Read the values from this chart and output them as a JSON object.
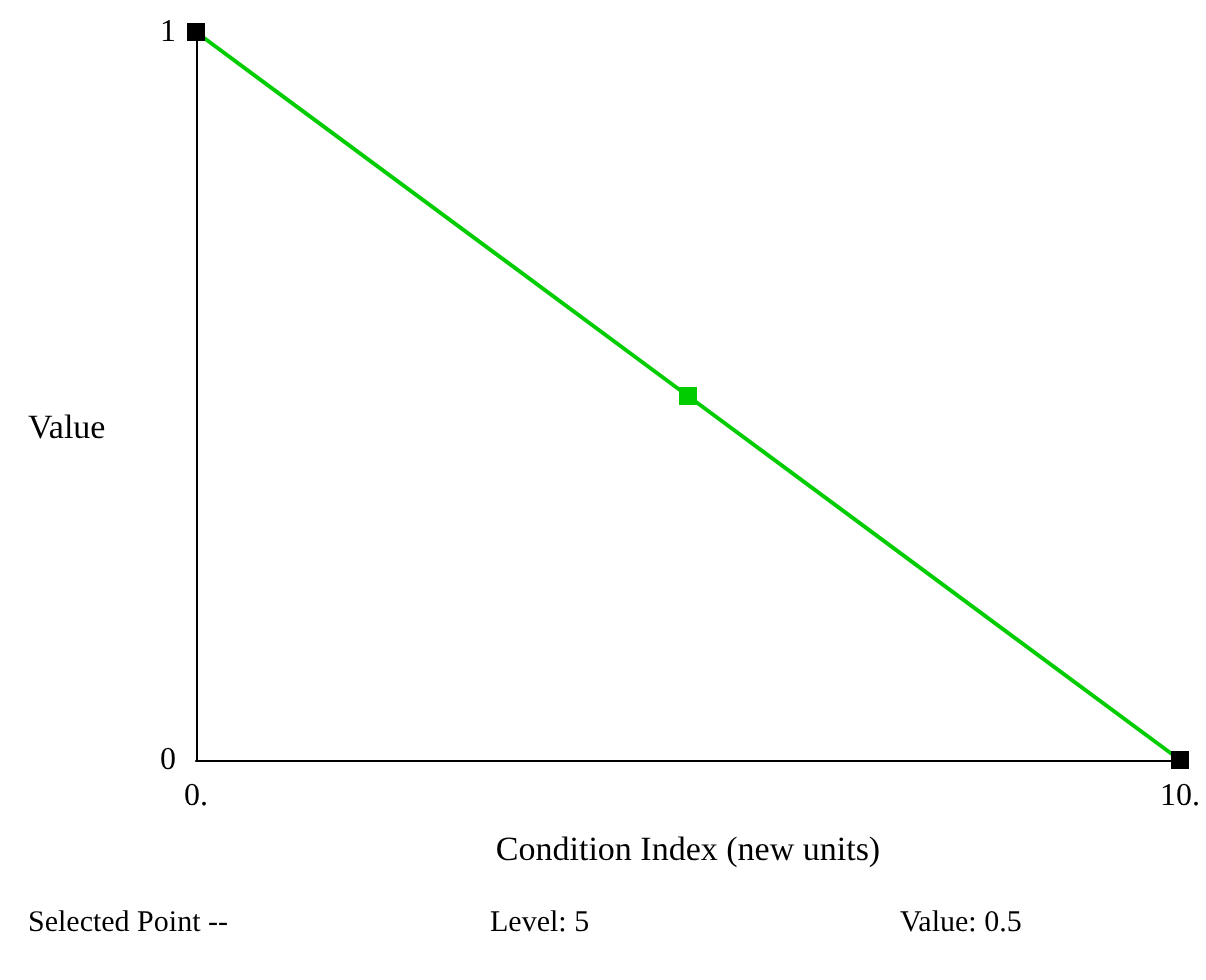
{
  "chart_data": {
    "type": "line",
    "xlabel": "Condition Index (new units)",
    "ylabel": "Value",
    "x": [
      0,
      5,
      10
    ],
    "series": [
      {
        "color": "#00cc00",
        "colors": [
          "#000000",
          "#00cc00",
          "#000000"
        ],
        "values": [
          1,
          0.5,
          0
        ]
      }
    ],
    "xlim": [
      0,
      10
    ],
    "ylim": [
      0,
      1
    ],
    "xticks": [
      {
        "value": 0,
        "label": "0."
      },
      {
        "value": 10,
        "label": "10."
      }
    ],
    "yticks": [
      0,
      1
    ],
    "annotations": [
      "Selected Point --",
      "Level: 5",
      "Value: 0.5"
    ],
    "grid": false,
    "marker": "square",
    "line_style": "solid"
  }
}
